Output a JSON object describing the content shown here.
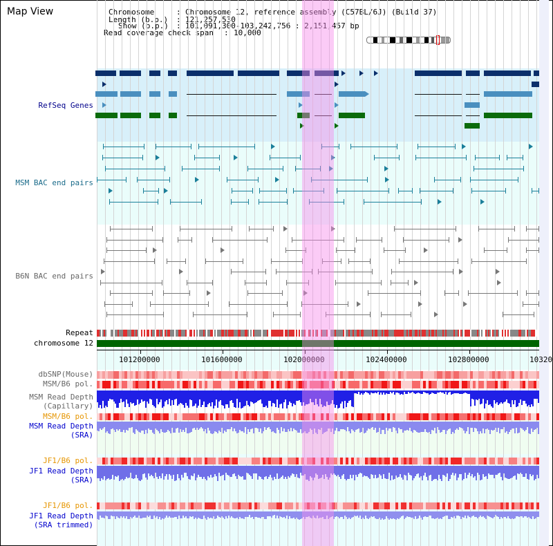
{
  "header": {
    "title": "Map View",
    "chromosome_label": "Chromosome",
    "chromosome_value": "Chromosome 12, reference assembly (C57BL/6J) (Build 37)",
    "length_label": "Length (b.p.)",
    "length_value": "121,257,530",
    "show_label": "Show (b.p.)",
    "show_value": "101,091,300-103,242,756 : 2,151,457 bp",
    "coverage_label": "Read coverage check span",
    "coverage_value": "10,000"
  },
  "tracks": {
    "refseq": "RefSeq Genes",
    "msm_bac": "MSM BAC end pairs",
    "b6n_bac": "B6N BAC end pairs",
    "repeat": "Repeat",
    "chromosome": "chromosome 12",
    "dbsnp": "dbSNP(Mouse)",
    "msm_b6_pol_1": "MSM/B6 pol.",
    "msm_read_depth_cap_1": "MSM Read Depth",
    "msm_read_depth_cap_2": "(Capillary)",
    "msm_b6_pol_2": "MSM/B6 pol.",
    "msm_read_depth_sra_1": "MSM Read Depth",
    "msm_read_depth_sra_2": "(SRA)",
    "jf1_b6_pol_1": "JF1/B6 pol.",
    "jf1_read_depth_sra_1": "JF1 Read Depth",
    "jf1_read_depth_sra_2": "(SRA)",
    "jf1_b6_pol_2": "JF1/B6 pol.",
    "jf1_read_depth_trim_1": "JF1 Read Depth",
    "jf1_read_depth_trim_2": "(SRA trimmed)"
  },
  "axis": {
    "ticks": [
      "101200000",
      "101600000",
      "102000000",
      "102400000",
      "102800000",
      "10320"
    ]
  },
  "colors": {
    "refseq_label": "#00008b",
    "msm_label": "#1a6b8a",
    "b6n_label": "#666666",
    "orange_label": "#e69500",
    "blue_label": "#0000cc",
    "highlight": "#f68ceb",
    "chromosome_bar": "#006400"
  }
}
